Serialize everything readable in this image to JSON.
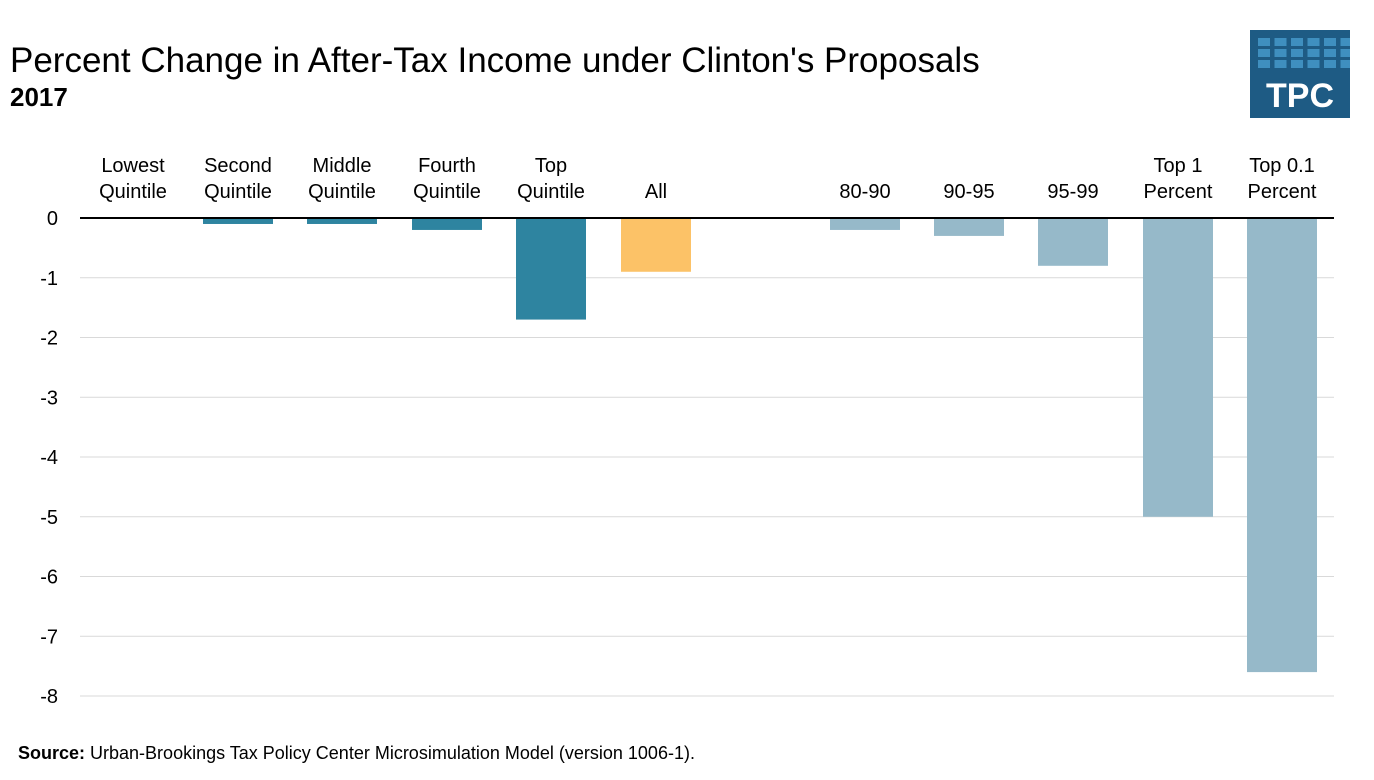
{
  "chart_data": {
    "type": "bar",
    "title": "Percent Change in After-Tax Income under Clinton's Proposals",
    "subtitle": "2017",
    "categories": [
      [
        "Lowest",
        "Quintile"
      ],
      [
        "Second",
        "Quintile"
      ],
      [
        "Middle",
        "Quintile"
      ],
      [
        "Fourth",
        "Quintile"
      ],
      [
        "Top",
        "Quintile"
      ],
      [
        "All"
      ],
      [
        "80-90"
      ],
      [
        "90-95"
      ],
      [
        "95-99"
      ],
      [
        "Top 1",
        "Percent"
      ],
      [
        "Top 0.1",
        "Percent"
      ]
    ],
    "values": [
      0.0,
      -0.1,
      -0.1,
      -0.2,
      -1.7,
      -0.9,
      -0.2,
      -0.3,
      -0.8,
      -5.0,
      -7.6
    ],
    "bar_colors": [
      "#2e84a0",
      "#2e84a0",
      "#2e84a0",
      "#2e84a0",
      "#2e84a0",
      "#fcc267",
      "#96b9c9",
      "#96b9c9",
      "#96b9c9",
      "#96b9c9",
      "#96b9c9"
    ],
    "ylim": [
      -8,
      0
    ],
    "yticks": [
      0,
      -1,
      -2,
      -3,
      -4,
      -5,
      -6,
      -7,
      -8
    ],
    "grid": true,
    "xlabel": "",
    "ylabel": ""
  },
  "logo": {
    "text": "TPC",
    "color": "#1e5b84",
    "tile_color": "#3f8fbf"
  },
  "source": {
    "label": "Source:",
    "text": " Urban-Brookings Tax Policy Center Microsimulation Model (version 1006-1)."
  }
}
